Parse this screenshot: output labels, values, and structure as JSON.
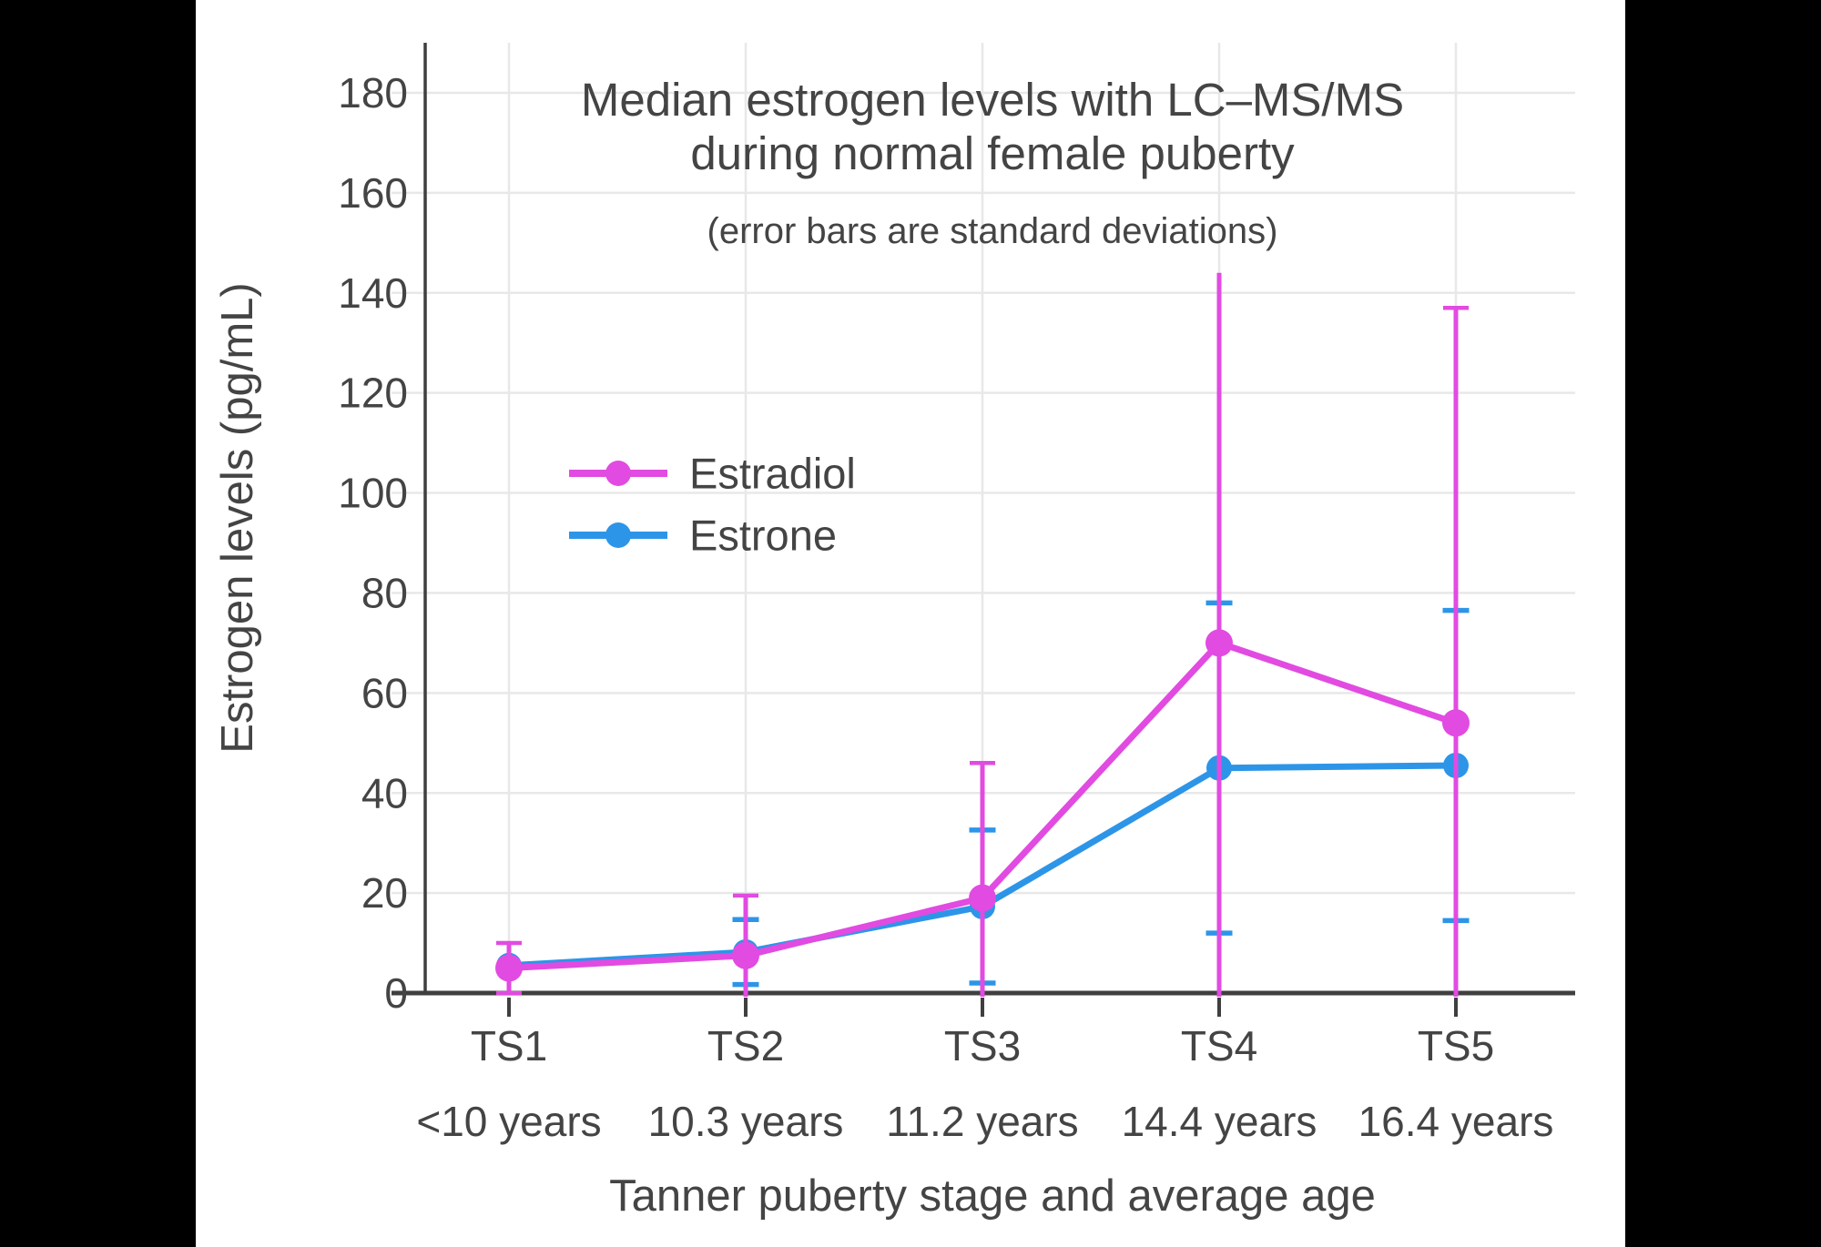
{
  "palette": {
    "background": "#000000",
    "panel": "#ffffff",
    "text": "#444444",
    "axis": "#3f3f3f",
    "grid": "#e8e8e8"
  },
  "chart_data": {
    "type": "line",
    "title_lines": [
      "Median estrogen levels with LC–MS/MS",
      "during normal female puberty"
    ],
    "subtitle": "(error bars are standard deviations)",
    "xlabel": "Tanner puberty stage and average age",
    "ylabel": "Estrogen levels (pg/mL)",
    "ylim": [
      0,
      190
    ],
    "yticks": [
      0,
      20,
      40,
      60,
      80,
      100,
      120,
      140,
      160,
      180
    ],
    "grid": true,
    "legend_position": "inside-left-middle",
    "categories": [
      "TS1",
      "TS2",
      "TS3",
      "TS4",
      "TS5"
    ],
    "category_sublabels": [
      "<10 years",
      "10.3 years",
      "11.2 years",
      "14.4 years",
      "16.4 years"
    ],
    "error_bar_meaning": "standard deviation",
    "series": [
      {
        "name": "Estradiol",
        "color": "#E14BE1",
        "values": [
          5,
          7.5,
          19,
          70,
          54
        ],
        "sd": [
          5,
          12,
          27,
          74,
          83
        ],
        "cap_top": [
          true,
          true,
          true,
          false,
          true
        ],
        "z": 2
      },
      {
        "name": "Estrone",
        "color": "#2D95E8",
        "values": [
          5.5,
          8.2,
          17.3,
          45,
          45.5
        ],
        "sd": [
          null,
          6.5,
          15.3,
          33,
          31
        ],
        "cap_top": [
          true,
          true,
          true,
          true,
          true
        ],
        "z": 1
      }
    ]
  }
}
